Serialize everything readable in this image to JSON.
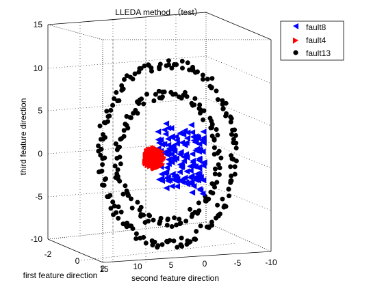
{
  "chart_data": {
    "type": "scatter",
    "title": "LLEDA method （test）",
    "xlabel": "first feature direction",
    "ylabel": "second feature direction",
    "zlabel": "third feature direction",
    "x_ticks": [
      "-2",
      "0",
      "2"
    ],
    "y_ticks": [
      "15",
      "10",
      "5",
      "0",
      "-5",
      "-10"
    ],
    "z_ticks": [
      "15",
      "10",
      "5",
      "0",
      "-5",
      "-10"
    ],
    "xlim": [
      -2,
      2
    ],
    "ylim": [
      -10,
      15
    ],
    "zlim": [
      -10,
      15
    ],
    "grid": true,
    "legend_position": "top-right",
    "series": [
      {
        "name": "fault8",
        "marker": "triangle-left",
        "color": "#0000ff",
        "shape": "compact irregular cluster",
        "approx_center": {
          "y": 1.5,
          "z": -0.5
        },
        "approx_half_extent": {
          "y": 3.5,
          "z": 4.5
        },
        "count_estimate": 150
      },
      {
        "name": "fault4",
        "marker": "triangle-right",
        "color": "#ff0000",
        "shape": "dense blob",
        "approx_center": {
          "y": 5.5,
          "z": -0.5
        },
        "approx_half_extent": {
          "y": 1.5,
          "z": 1.2
        },
        "count_estimate": 120
      },
      {
        "name": "fault13",
        "marker": "circle",
        "color": "#000000",
        "shape": "two elliptical rings",
        "rings": [
          {
            "center": {
              "y": 3.5,
              "z": 0
            },
            "radius_y": 10,
            "radius_z": 10.5
          },
          {
            "center": {
              "y": 3.5,
              "z": -0.5
            },
            "radius_y": 7.5,
            "radius_z": 7.5
          }
        ],
        "count_estimate": 300
      }
    ]
  }
}
